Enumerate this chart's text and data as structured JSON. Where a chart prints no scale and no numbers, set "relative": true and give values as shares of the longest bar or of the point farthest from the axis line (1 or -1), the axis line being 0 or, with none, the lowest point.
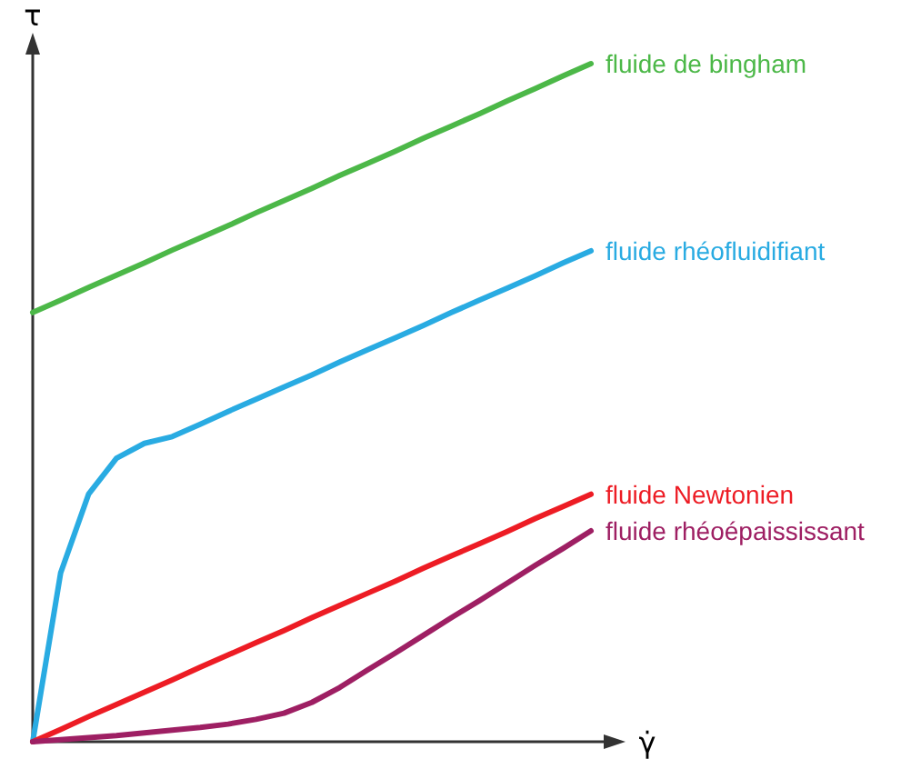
{
  "chart_data": {
    "type": "line",
    "relative": true,
    "xlabel": "γ̇",
    "ylabel": "τ",
    "legend": false,
    "grid": false,
    "marker": "none",
    "line_style": "solid",
    "categories": [
      null,
      null,
      null,
      null,
      null,
      null,
      null,
      null,
      null,
      null,
      null,
      null,
      null,
      null,
      null,
      null,
      null,
      null,
      null,
      null,
      null
    ],
    "series": [
      {
        "name": "fluide de bingham",
        "color": "#4cb848",
        "values": [
          0.633,
          0.651,
          0.67,
          0.688,
          0.706,
          0.725,
          0.743,
          0.761,
          0.78,
          0.798,
          0.816,
          0.835,
          0.853,
          0.871,
          0.89,
          0.908,
          0.926,
          0.945,
          0.963,
          0.982,
          1.0
        ]
      },
      {
        "name": "fluide rhéofluidifiant",
        "color": "#29abe2",
        "values": [
          0,
          0.249,
          0.365,
          0.418,
          0.44,
          0.45,
          0.468,
          0.487,
          0.505,
          0.523,
          0.541,
          0.56,
          0.578,
          0.596,
          0.614,
          0.633,
          0.651,
          0.669,
          0.687,
          0.706,
          0.724
        ]
      },
      {
        "name": "fluide Newtonien",
        "color": "#ed1c24",
        "values": [
          0,
          0.018,
          0.037,
          0.055,
          0.073,
          0.091,
          0.11,
          0.128,
          0.146,
          0.164,
          0.183,
          0.201,
          0.219,
          0.237,
          0.256,
          0.274,
          0.292,
          0.31,
          0.329,
          0.347,
          0.365
        ]
      },
      {
        "name": "fluide rhéoépaississant",
        "color": "#9e1f63",
        "values": [
          0,
          0.003,
          0.006,
          0.009,
          0.013,
          0.017,
          0.021,
          0.026,
          0.033,
          0.042,
          0.058,
          0.08,
          0.106,
          0.131,
          0.157,
          0.183,
          0.208,
          0.234,
          0.26,
          0.285,
          0.311
        ]
      }
    ]
  }
}
